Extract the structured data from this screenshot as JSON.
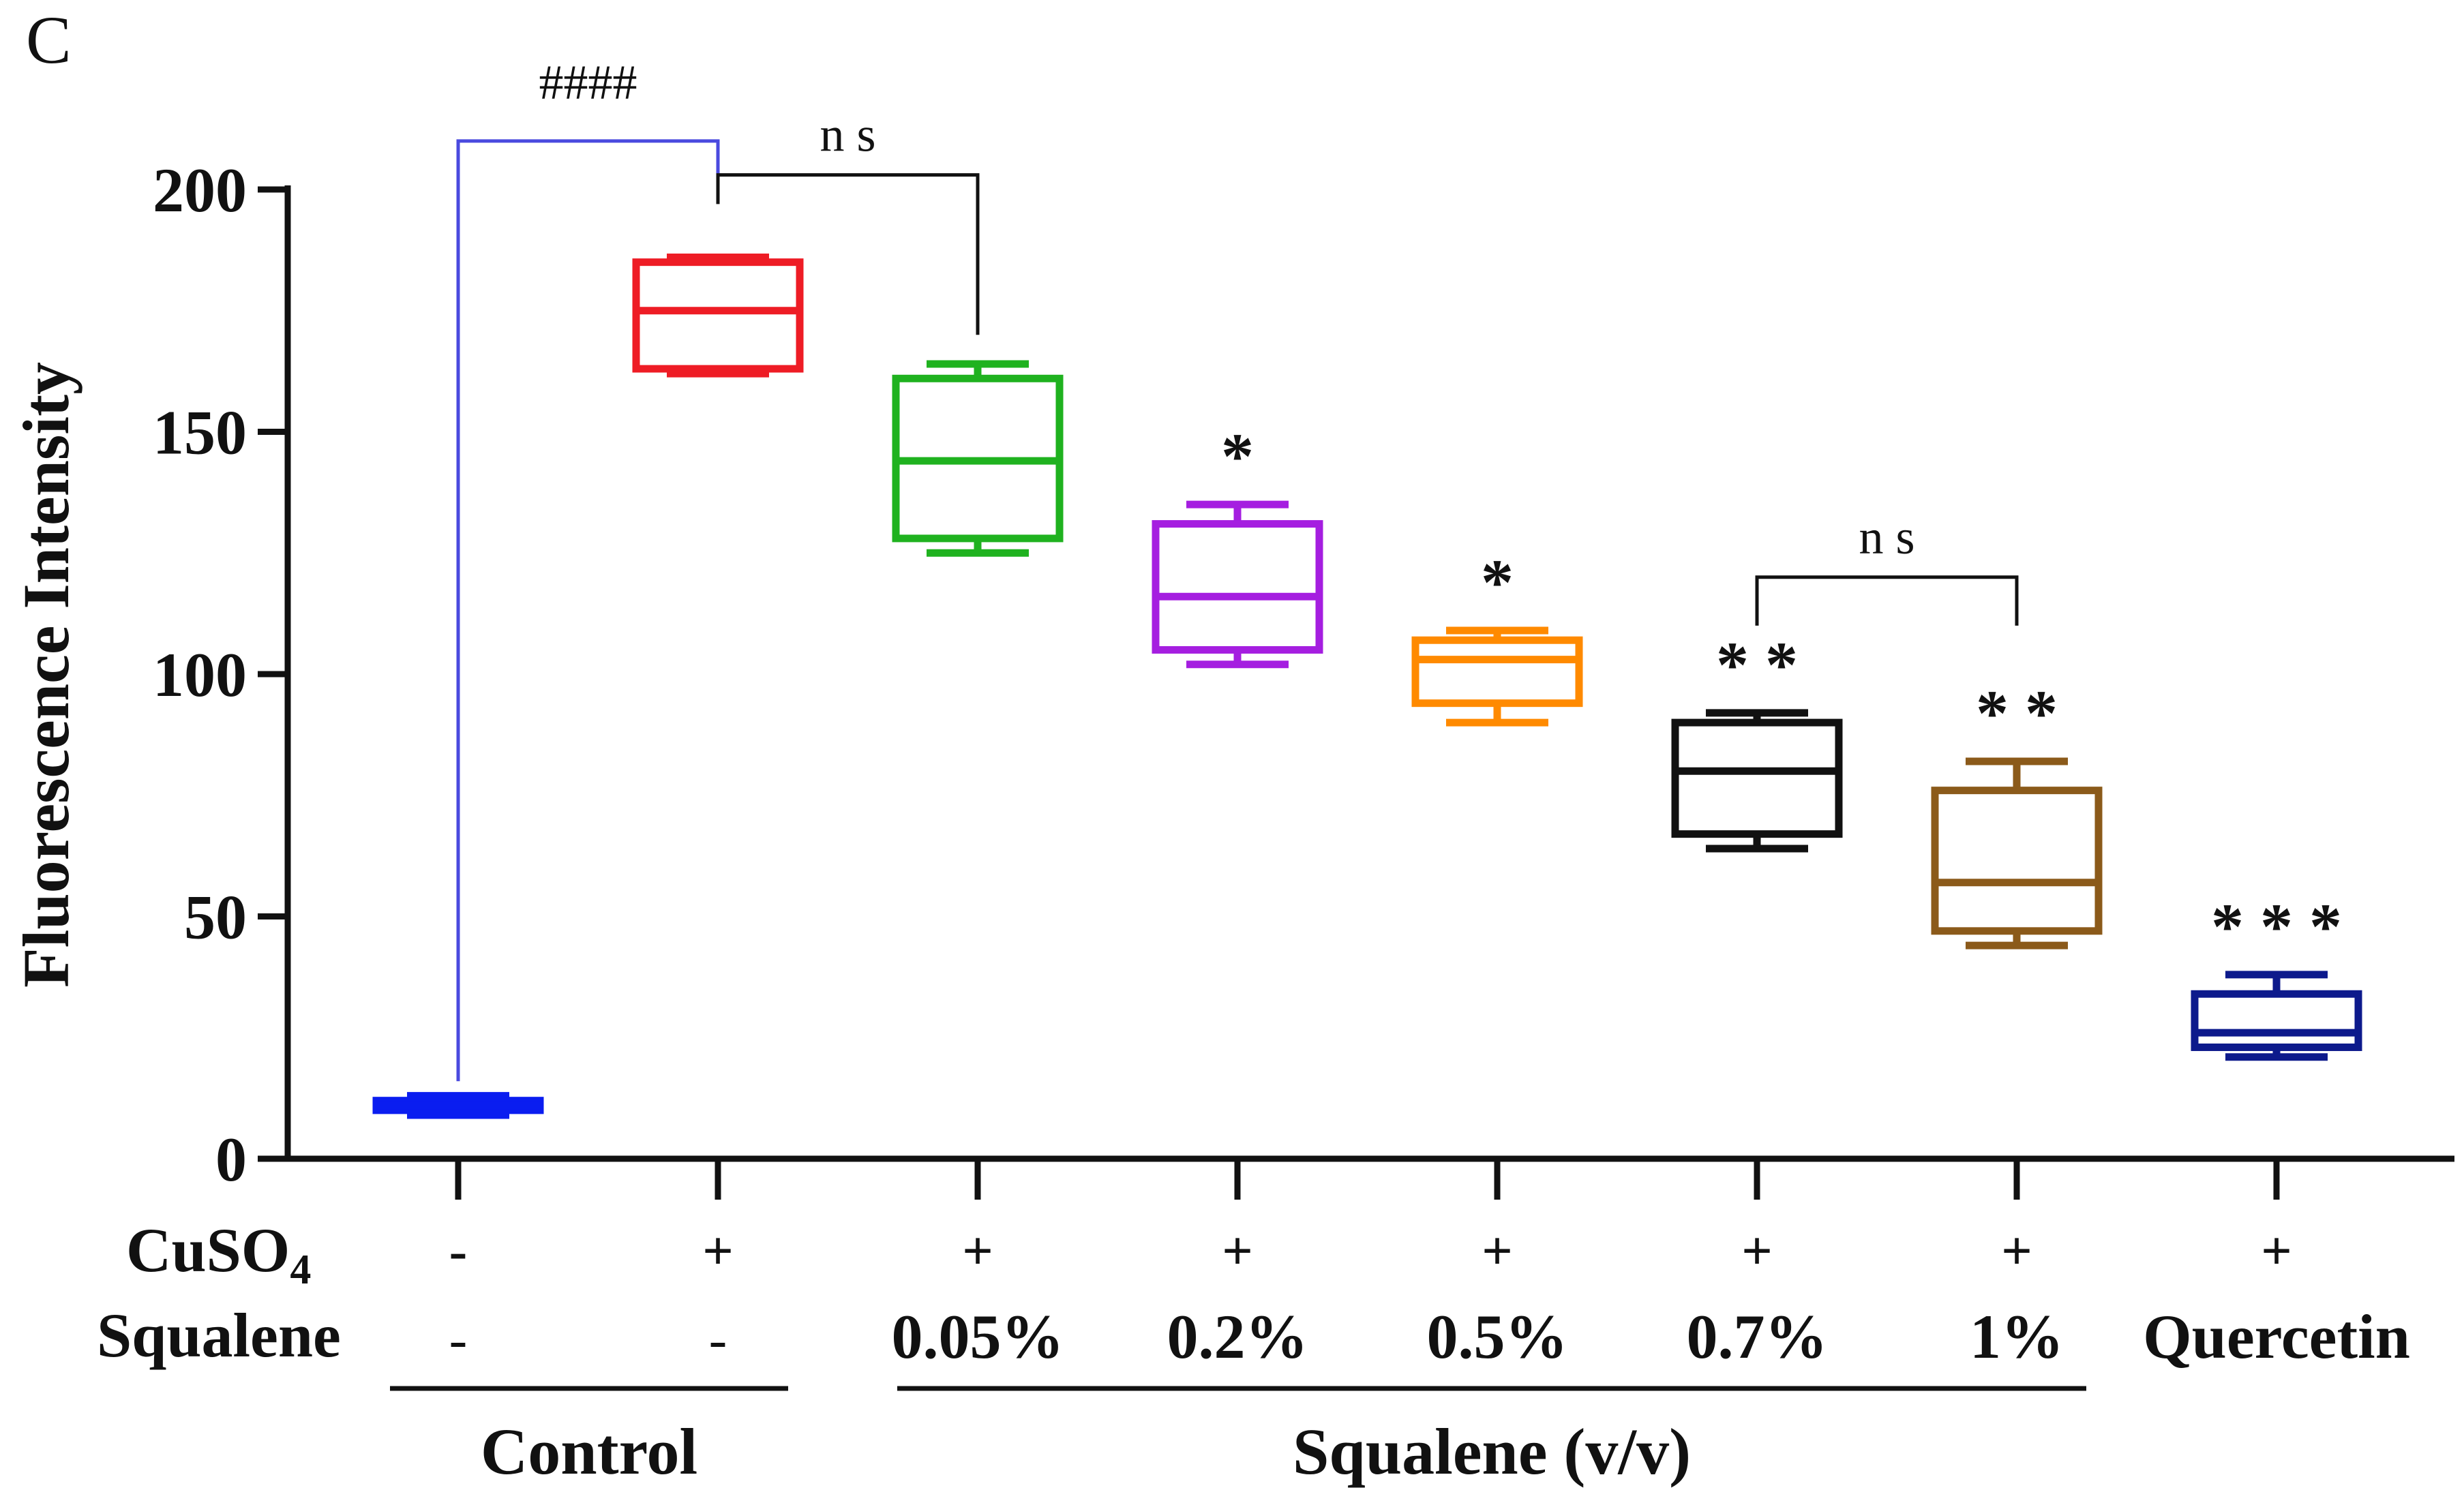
{
  "panel_label": "C",
  "chart_data": {
    "type": "box",
    "ylabel": "Fluorescence Intensity",
    "ylim": [
      0,
      200
    ],
    "yticks": [
      0,
      50,
      100,
      150,
      200
    ],
    "row_labels": {
      "cuso4": "CuSO",
      "cuso4_sub": "4",
      "squalene": "Squalene"
    },
    "groups": [
      {
        "cuso4": "-",
        "squalene": "-",
        "color": "#0a1df0",
        "min": 9,
        "q1": 10,
        "median": 11,
        "q3": 12,
        "max": 13,
        "sig": ""
      },
      {
        "cuso4": "+",
        "squalene": "-",
        "color": "#ee1c25",
        "min": 162,
        "q1": 163,
        "median": 175,
        "q3": 185,
        "max": 186,
        "sig": ""
      },
      {
        "cuso4": "+",
        "squalene": "0.05%",
        "color": "#1fb21f",
        "min": 125,
        "q1": 128,
        "median": 144,
        "q3": 161,
        "max": 164,
        "sig": ""
      },
      {
        "cuso4": "+",
        "squalene": "0.2%",
        "color": "#a51ee0",
        "min": 102,
        "q1": 105,
        "median": 116,
        "q3": 131,
        "max": 135,
        "sig": "*"
      },
      {
        "cuso4": "+",
        "squalene": "0.5%",
        "color": "#ff8a00",
        "min": 90,
        "q1": 94,
        "median": 103,
        "q3": 107,
        "max": 109,
        "sig": "*"
      },
      {
        "cuso4": "+",
        "squalene": "0.7%",
        "color": "#111111",
        "min": 64,
        "q1": 67,
        "median": 80,
        "q3": 90,
        "max": 92,
        "sig": "* *"
      },
      {
        "cuso4": "+",
        "squalene": "1%",
        "color": "#8b5a1a",
        "min": 44,
        "q1": 47,
        "median": 57,
        "q3": 76,
        "max": 82,
        "sig": "* *"
      },
      {
        "cuso4": "+",
        "squalene": "Quercetin",
        "color": "#0d1a8c",
        "min": 21,
        "q1": 23,
        "median": 26,
        "q3": 34,
        "max": 38,
        "sig": "* * *"
      }
    ],
    "comparisons": [
      {
        "from": 0,
        "to": 1,
        "y": 210,
        "label": "####",
        "color": "#4a4adf",
        "left_drop_to": 16,
        "right_drop_to": 200
      },
      {
        "from": 1,
        "to": 2,
        "y": 203,
        "label": "n s",
        "color": "#111111",
        "left_drop_to": 197,
        "right_drop_to": 170
      },
      {
        "from": 5,
        "to": 6,
        "y": 120,
        "label": "n s",
        "color": "#111111",
        "left_drop_to": 110,
        "right_drop_to": 110
      }
    ],
    "brackets": [
      {
        "label": "Control",
        "from": 0,
        "to": 1
      },
      {
        "label": "Squalene (v/v)",
        "from": 2,
        "to": 6
      }
    ]
  }
}
